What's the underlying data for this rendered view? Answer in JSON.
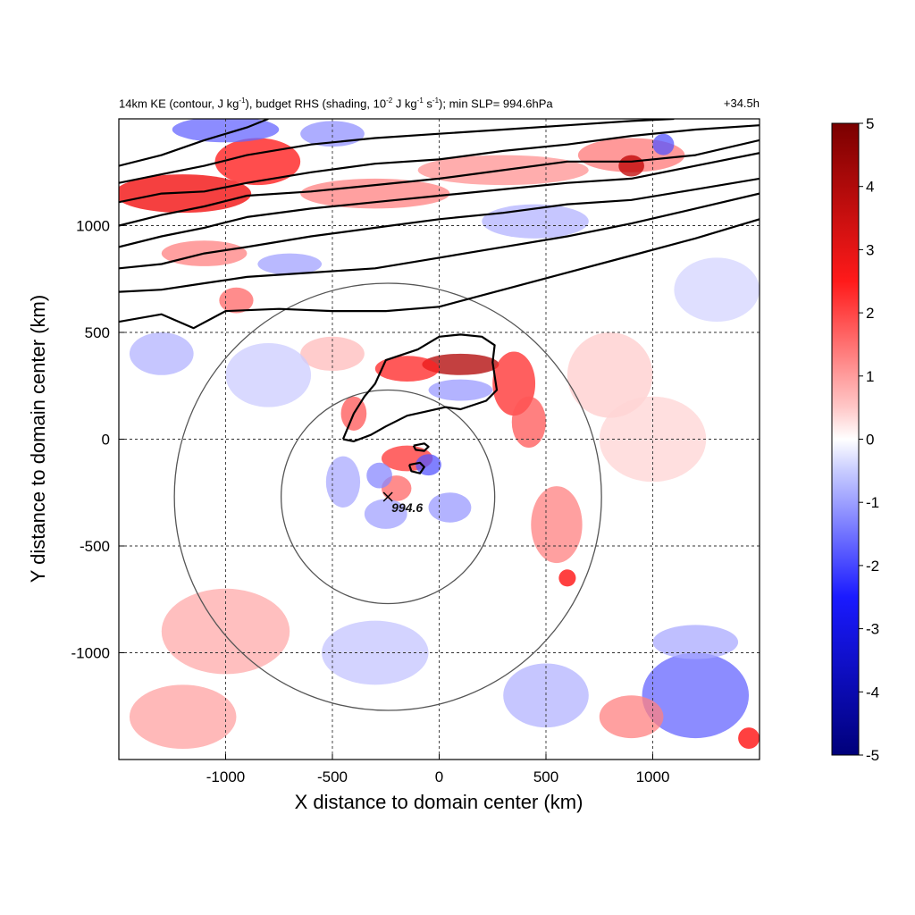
{
  "chart_data": {
    "type": "heatmap",
    "title": "14km KE (contour, J kg-1), budget RHS (shading, 10-2 J kg-1 s-1); min SLP= 994.6hPa",
    "title_parts": {
      "p1": "14km KE (contour, J kg",
      "s1": "-1",
      "p2": "), budget RHS (shading, 10",
      "s2": "-2",
      "p3": " J kg",
      "s3": "-1",
      "p4": " s",
      "s4": "-1",
      "p5": "); min SLP= 994.6hPa"
    },
    "time_label": "+34.5h",
    "xlabel": "X distance to domain center (km)",
    "ylabel": "Y distance to domain center (km)",
    "xlim": [
      -1500,
      1500
    ],
    "ylim": [
      -1500,
      1500
    ],
    "x_ticks": [
      -1000,
      -500,
      0,
      500,
      1000
    ],
    "y_ticks": [
      -1000,
      -500,
      0,
      500,
      1000
    ],
    "x_tick_labels": [
      "-1000",
      "-500",
      "0",
      "500",
      "1000"
    ],
    "y_tick_labels": [
      "-1000",
      "-500",
      "0",
      "500",
      "1000"
    ],
    "grid": true,
    "grid_style": "dashed",
    "colorbar": {
      "min": -5,
      "max": 5,
      "ticks": [
        5,
        4,
        3,
        2,
        1,
        0,
        -1,
        -2,
        -3,
        -4,
        -5
      ],
      "tick_labels": [
        "5",
        "4",
        "3",
        "2",
        "1",
        "0",
        "-1",
        "-2",
        "-3",
        "-4",
        "-5"
      ],
      "colors": [
        "#00008b",
        "#0000ff",
        "#ffffff",
        "#ff0000",
        "#8b0000"
      ],
      "placement": "right"
    },
    "storm_center": {
      "x": -240,
      "y": -270,
      "marker": "x",
      "label": "994.6"
    },
    "range_circles_radius_km": [
      500,
      1000
    ],
    "ke_contours": [
      [
        [
          -1500,
          550
        ],
        [
          -1300,
          585
        ],
        [
          -1150,
          520
        ],
        [
          -1000,
          600
        ],
        [
          -750,
          610
        ],
        [
          -500,
          600
        ],
        [
          -250,
          600
        ],
        [
          0,
          620
        ],
        [
          300,
          700
        ],
        [
          600,
          780
        ],
        [
          900,
          860
        ],
        [
          1200,
          940
        ],
        [
          1500,
          1030
        ]
      ],
      [
        [
          -1500,
          690
        ],
        [
          -1300,
          700
        ],
        [
          -1100,
          730
        ],
        [
          -900,
          760
        ],
        [
          -600,
          780
        ],
        [
          -300,
          800
        ],
        [
          0,
          850
        ],
        [
          300,
          900
        ],
        [
          600,
          950
        ],
        [
          900,
          1010
        ],
        [
          1200,
          1080
        ],
        [
          1500,
          1150
        ]
      ],
      [
        [
          -1500,
          800
        ],
        [
          -1300,
          820
        ],
        [
          -1100,
          870
        ],
        [
          -900,
          900
        ],
        [
          -600,
          950
        ],
        [
          -300,
          990
        ],
        [
          0,
          1030
        ],
        [
          300,
          1060
        ],
        [
          600,
          1100
        ],
        [
          900,
          1120
        ],
        [
          1200,
          1170
        ],
        [
          1500,
          1220
        ]
      ],
      [
        [
          -1500,
          900
        ],
        [
          -1300,
          950
        ],
        [
          -1100,
          990
        ],
        [
          -900,
          1040
        ],
        [
          -600,
          1080
        ],
        [
          -300,
          1110
        ],
        [
          0,
          1140
        ],
        [
          300,
          1170
        ],
        [
          600,
          1200
        ],
        [
          900,
          1220
        ],
        [
          1200,
          1280
        ],
        [
          1500,
          1340
        ]
      ],
      [
        [
          -1500,
          1000
        ],
        [
          -1300,
          1050
        ],
        [
          -1100,
          1090
        ],
        [
          -900,
          1140
        ],
        [
          -600,
          1160
        ],
        [
          -300,
          1190
        ],
        [
          0,
          1220
        ],
        [
          300,
          1260
        ],
        [
          600,
          1300
        ],
        [
          900,
          1300
        ],
        [
          1200,
          1330
        ],
        [
          1500,
          1400
        ]
      ],
      [
        [
          -1500,
          1110
        ],
        [
          -1300,
          1150
        ],
        [
          -1100,
          1160
        ],
        [
          -900,
          1200
        ],
        [
          -600,
          1250
        ],
        [
          -300,
          1290
        ],
        [
          0,
          1310
        ],
        [
          300,
          1350
        ],
        [
          600,
          1380
        ],
        [
          900,
          1420
        ],
        [
          1200,
          1450
        ],
        [
          1500,
          1470
        ]
      ],
      [
        [
          -1500,
          1200
        ],
        [
          -1300,
          1240
        ],
        [
          -1100,
          1280
        ],
        [
          -900,
          1330
        ],
        [
          -600,
          1380
        ],
        [
          -300,
          1410
        ],
        [
          0,
          1430
        ],
        [
          300,
          1450
        ],
        [
          600,
          1470
        ],
        [
          900,
          1490
        ],
        [
          1100,
          1500
        ]
      ],
      [
        [
          -1500,
          1280
        ],
        [
          -1300,
          1330
        ],
        [
          -1100,
          1400
        ],
        [
          -900,
          1460
        ],
        [
          -800,
          1500
        ]
      ],
      [
        [
          -450,
          0
        ],
        [
          -400,
          120
        ],
        [
          -350,
          200
        ],
        [
          -300,
          260
        ],
        [
          -250,
          370
        ],
        [
          -100,
          420
        ],
        [
          0,
          480
        ],
        [
          100,
          490
        ],
        [
          200,
          480
        ],
        [
          260,
          440
        ],
        [
          250,
          360
        ],
        [
          270,
          230
        ],
        [
          220,
          180
        ],
        [
          100,
          140
        ],
        [
          30,
          150
        ],
        [
          -60,
          130
        ],
        [
          -150,
          110
        ],
        [
          -250,
          60
        ],
        [
          -320,
          20
        ],
        [
          -400,
          -10
        ],
        [
          -450,
          0
        ]
      ],
      [
        [
          -120,
          -30
        ],
        [
          -70,
          -20
        ],
        [
          -50,
          -35
        ],
        [
          -70,
          -55
        ],
        [
          -110,
          -50
        ],
        [
          -120,
          -30
        ]
      ],
      [
        [
          -140,
          -120
        ],
        [
          -90,
          -110
        ],
        [
          -70,
          -130
        ],
        [
          -90,
          -160
        ],
        [
          -130,
          -150
        ],
        [
          -140,
          -120
        ]
      ]
    ],
    "shading_features": [
      {
        "x": -1200,
        "y": 1150,
        "sx": 320,
        "sy": 90,
        "v": 3.2
      },
      {
        "x": -850,
        "y": 1300,
        "sx": 200,
        "sy": 110,
        "v": 2.8
      },
      {
        "x": -300,
        "y": 1150,
        "sx": 350,
        "sy": 70,
        "v": 1.5
      },
      {
        "x": 300,
        "y": 1260,
        "sx": 400,
        "sy": 70,
        "v": 1.3
      },
      {
        "x": 900,
        "y": 1330,
        "sx": 250,
        "sy": 80,
        "v": 1.6
      },
      {
        "x": 900,
        "y": 1280,
        "sx": 60,
        "sy": 50,
        "v": 4.0
      },
      {
        "x": 1050,
        "y": 1380,
        "sx": 50,
        "sy": 50,
        "v": -2.0
      },
      {
        "x": -1000,
        "y": 1450,
        "sx": 250,
        "sy": 60,
        "v": -1.8
      },
      {
        "x": -500,
        "y": 1430,
        "sx": 150,
        "sy": 60,
        "v": -1.3
      },
      {
        "x": 450,
        "y": 1020,
        "sx": 250,
        "sy": 80,
        "v": -0.9
      },
      {
        "x": -1100,
        "y": 870,
        "sx": 200,
        "sy": 60,
        "v": 1.5
      },
      {
        "x": -700,
        "y": 820,
        "sx": 150,
        "sy": 50,
        "v": -1.1
      },
      {
        "x": -950,
        "y": 650,
        "sx": 80,
        "sy": 60,
        "v": 1.8
      },
      {
        "x": 100,
        "y": 350,
        "sx": 180,
        "sy": 50,
        "v": 4.2
      },
      {
        "x": -150,
        "y": 330,
        "sx": 150,
        "sy": 60,
        "v": 2.6
      },
      {
        "x": 350,
        "y": 260,
        "sx": 100,
        "sy": 150,
        "v": 2.5
      },
      {
        "x": 420,
        "y": 80,
        "sx": 80,
        "sy": 120,
        "v": 2.0
      },
      {
        "x": 100,
        "y": 230,
        "sx": 150,
        "sy": 50,
        "v": -1.2
      },
      {
        "x": -400,
        "y": 120,
        "sx": 60,
        "sy": 80,
        "v": 2.0
      },
      {
        "x": -500,
        "y": 400,
        "sx": 150,
        "sy": 80,
        "v": 0.8
      },
      {
        "x": -150,
        "y": -90,
        "sx": 120,
        "sy": 60,
        "v": 2.4
      },
      {
        "x": -50,
        "y": -120,
        "sx": 60,
        "sy": 50,
        "v": -2.0
      },
      {
        "x": -200,
        "y": -230,
        "sx": 70,
        "sy": 60,
        "v": 1.8
      },
      {
        "x": -280,
        "y": -170,
        "sx": 60,
        "sy": 60,
        "v": -1.4
      },
      {
        "x": 50,
        "y": -320,
        "sx": 100,
        "sy": 70,
        "v": -1.2
      },
      {
        "x": -250,
        "y": -350,
        "sx": 100,
        "sy": 70,
        "v": -1.1
      },
      {
        "x": -450,
        "y": -200,
        "sx": 80,
        "sy": 120,
        "v": -1.0
      },
      {
        "x": 550,
        "y": -400,
        "sx": 120,
        "sy": 180,
        "v": 1.5
      },
      {
        "x": 600,
        "y": -650,
        "sx": 40,
        "sy": 40,
        "v": 3.0
      },
      {
        "x": -1000,
        "y": -900,
        "sx": 300,
        "sy": 200,
        "v": 1.0
      },
      {
        "x": -1200,
        "y": -1300,
        "sx": 250,
        "sy": 150,
        "v": 1.1
      },
      {
        "x": 1200,
        "y": -1200,
        "sx": 250,
        "sy": 200,
        "v": -1.8
      },
      {
        "x": 900,
        "y": -1300,
        "sx": 150,
        "sy": 100,
        "v": 1.5
      },
      {
        "x": 1450,
        "y": -1400,
        "sx": 50,
        "sy": 50,
        "v": 3.0
      },
      {
        "x": 1200,
        "y": -950,
        "sx": 200,
        "sy": 80,
        "v": -1.0
      },
      {
        "x": 500,
        "y": -1200,
        "sx": 200,
        "sy": 150,
        "v": -0.9
      },
      {
        "x": -300,
        "y": -1000,
        "sx": 250,
        "sy": 150,
        "v": -0.7
      },
      {
        "x": 800,
        "y": 300,
        "sx": 200,
        "sy": 200,
        "v": 0.6
      },
      {
        "x": -800,
        "y": 300,
        "sx": 200,
        "sy": 150,
        "v": -0.6
      },
      {
        "x": -1300,
        "y": 400,
        "sx": 150,
        "sy": 100,
        "v": -0.9
      },
      {
        "x": 1000,
        "y": 0,
        "sx": 250,
        "sy": 200,
        "v": 0.5
      },
      {
        "x": 1300,
        "y": 700,
        "sx": 200,
        "sy": 150,
        "v": -0.5
      }
    ]
  }
}
